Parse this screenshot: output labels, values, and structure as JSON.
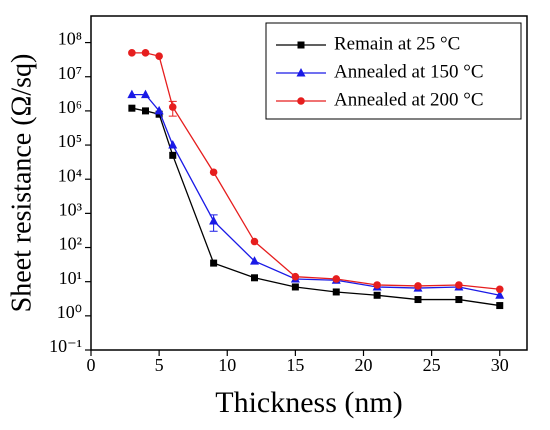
{
  "chart_data": {
    "type": "line",
    "xlabel": "Thickness (nm)",
    "ylabel": "Sheet resistance (Ω/sq)",
    "x": [
      3,
      4,
      5,
      6,
      9,
      12,
      15,
      18,
      21,
      24,
      27,
      30
    ],
    "series": [
      {
        "name": "Remain at 25 °C",
        "color": "#000000",
        "marker": "square",
        "values": [
          1200000,
          1000000,
          800000,
          50000,
          35,
          13,
          7,
          5,
          4,
          3,
          3,
          2
        ]
      },
      {
        "name": "Annealed at 150 °C",
        "color": "#1a1ae6",
        "marker": "triangle",
        "values": [
          3000000,
          3000000,
          1000000,
          100000,
          600,
          40,
          12,
          11,
          7,
          6.5,
          7,
          4
        ],
        "errors": [
          null,
          null,
          null,
          null,
          300,
          null,
          null,
          null,
          null,
          null,
          null,
          null
        ]
      },
      {
        "name": "Annealed at 200 °C",
        "color": "#e61e1e",
        "marker": "circle",
        "values": [
          50000000,
          50000000,
          40000000,
          1300000,
          16000,
          150,
          14,
          12,
          8,
          7.5,
          8,
          6
        ],
        "errors": [
          null,
          null,
          null,
          600000,
          null,
          null,
          null,
          null,
          null,
          null,
          null,
          null
        ]
      }
    ],
    "xlim": [
      0,
      32
    ],
    "xticks": [
      0,
      5,
      10,
      15,
      20,
      25,
      30
    ],
    "ylim": [
      0.1,
      600000000
    ],
    "ylog": true,
    "yticks": [
      {
        "value": 0.1,
        "label": "10⁻¹"
      },
      {
        "value": 1,
        "label": "10⁰"
      },
      {
        "value": 10,
        "label": "10¹"
      },
      {
        "value": 100,
        "label": "10²"
      },
      {
        "value": 1000,
        "label": "10³"
      },
      {
        "value": 10000,
        "label": "10⁴"
      },
      {
        "value": 100000,
        "label": "10⁵"
      },
      {
        "value": 1000000,
        "label": "10⁶"
      },
      {
        "value": 10000000,
        "label": "10⁷"
      },
      {
        "value": 100000000,
        "label": "10⁸"
      }
    ],
    "legend": "upper right",
    "grid": false
  }
}
